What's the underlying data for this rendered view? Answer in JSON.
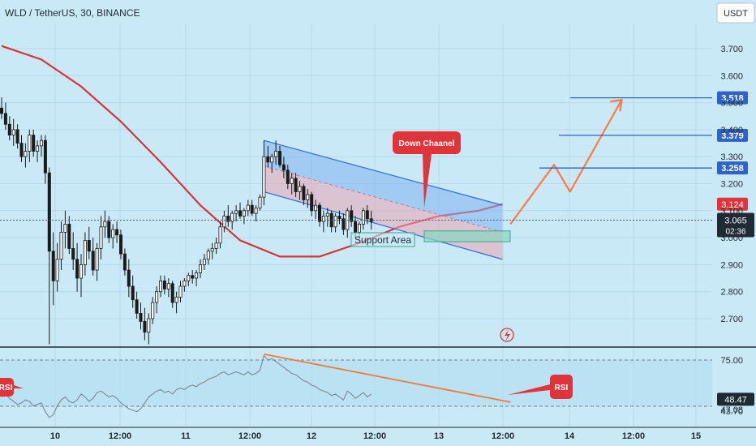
{
  "header": {
    "title": "WLD / TetherUS, 30, BINANCE",
    "currency_button": "USDT"
  },
  "colors": {
    "background": "#c9e9f7",
    "up": "#1b1b1b",
    "down": "#1b1b1b",
    "ma": "#d8333d",
    "channel": "#2f6fd8",
    "projection": "#ff7a3d",
    "level": "#2f63c9",
    "price_tag": "#2f63c9",
    "red_tag": "#e0333a",
    "rsi_line": "#7b8894",
    "rsi_trend": "#f07a3e"
  },
  "chart_data": {
    "type": "candlestick",
    "title": "WLD / TetherUS, 30, BINANCE",
    "x_ticks": [
      "10",
      "12:00",
      "11",
      "12:00",
      "12",
      "12:00",
      "13",
      "12:00",
      "14",
      "12:00",
      "15"
    ],
    "y_ticks": [
      3.7,
      3.6,
      3.5,
      3.4,
      3.3,
      3.2,
      3.1,
      3.0,
      2.9,
      2.8,
      2.7
    ],
    "y_tick_labels": [
      "3.700",
      "3.600",
      "3.500",
      "3.400",
      "3.300",
      "3.200",
      "3.100",
      "3.000",
      "2.900",
      "2.800",
      "2.700"
    ],
    "ylim": [
      2.61,
      3.83
    ],
    "candles": [
      [
        3.48,
        3.52,
        3.44,
        3.46
      ],
      [
        3.46,
        3.5,
        3.4,
        3.42
      ],
      [
        3.42,
        3.45,
        3.36,
        3.38
      ],
      [
        3.38,
        3.44,
        3.34,
        3.4
      ],
      [
        3.4,
        3.42,
        3.33,
        3.35
      ],
      [
        3.35,
        3.38,
        3.28,
        3.3
      ],
      [
        3.3,
        3.35,
        3.26,
        3.32
      ],
      [
        3.32,
        3.4,
        3.28,
        3.38
      ],
      [
        3.38,
        3.4,
        3.3,
        3.32
      ],
      [
        3.32,
        3.36,
        3.28,
        3.34
      ],
      [
        3.34,
        3.38,
        3.3,
        3.36
      ],
      [
        3.36,
        3.38,
        3.2,
        3.24
      ],
      [
        3.24,
        3.26,
        2.58,
        2.95
      ],
      [
        2.95,
        3.02,
        2.75,
        2.84
      ],
      [
        2.84,
        2.98,
        2.8,
        2.92
      ],
      [
        2.92,
        3.06,
        2.88,
        3.02
      ],
      [
        3.02,
        3.1,
        2.96,
        3.05
      ],
      [
        3.05,
        3.08,
        2.94,
        2.96
      ],
      [
        2.96,
        3.02,
        2.88,
        2.92
      ],
      [
        2.92,
        2.98,
        2.8,
        2.85
      ],
      [
        2.85,
        2.94,
        2.78,
        2.9
      ],
      [
        2.9,
        3.02,
        2.86,
        2.99
      ],
      [
        2.99,
        3.04,
        2.92,
        2.95
      ],
      [
        2.95,
        3.0,
        2.86,
        2.88
      ],
      [
        2.88,
        2.98,
        2.84,
        2.96
      ],
      [
        2.96,
        3.08,
        2.92,
        3.04
      ],
      [
        3.04,
        3.1,
        3.0,
        3.06
      ],
      [
        3.06,
        3.08,
        2.98,
        3.0
      ],
      [
        3.0,
        3.05,
        2.96,
        3.03
      ],
      [
        3.03,
        3.06,
        2.98,
        3.01
      ],
      [
        3.01,
        3.03,
        2.92,
        2.94
      ],
      [
        2.94,
        2.96,
        2.86,
        2.88
      ],
      [
        2.88,
        2.92,
        2.78,
        2.82
      ],
      [
        2.82,
        2.86,
        2.74,
        2.77
      ],
      [
        2.77,
        2.8,
        2.7,
        2.72
      ],
      [
        2.72,
        2.76,
        2.66,
        2.69
      ],
      [
        2.69,
        2.74,
        2.62,
        2.65
      ],
      [
        2.65,
        2.72,
        2.6,
        2.7
      ],
      [
        2.7,
        2.78,
        2.68,
        2.76
      ],
      [
        2.76,
        2.82,
        2.72,
        2.8
      ],
      [
        2.8,
        2.86,
        2.78,
        2.84
      ],
      [
        2.84,
        2.86,
        2.79,
        2.81
      ],
      [
        2.81,
        2.85,
        2.78,
        2.83
      ],
      [
        2.83,
        2.84,
        2.74,
        2.76
      ],
      [
        2.76,
        2.8,
        2.72,
        2.78
      ],
      [
        2.78,
        2.84,
        2.76,
        2.82
      ],
      [
        2.82,
        2.85,
        2.8,
        2.84
      ],
      [
        2.84,
        2.87,
        2.82,
        2.86
      ],
      [
        2.86,
        2.88,
        2.83,
        2.85
      ],
      [
        2.85,
        2.88,
        2.82,
        2.87
      ],
      [
        2.87,
        2.92,
        2.85,
        2.9
      ],
      [
        2.9,
        2.94,
        2.88,
        2.92
      ],
      [
        2.92,
        2.96,
        2.9,
        2.95
      ],
      [
        2.95,
        2.98,
        2.92,
        2.96
      ],
      [
        2.96,
        3.0,
        2.94,
        2.98
      ],
      [
        2.98,
        3.06,
        2.96,
        3.04
      ],
      [
        3.04,
        3.1,
        3.02,
        3.08
      ],
      [
        3.08,
        3.12,
        3.04,
        3.06
      ],
      [
        3.06,
        3.1,
        3.03,
        3.09
      ],
      [
        3.09,
        3.12,
        3.06,
        3.1
      ],
      [
        3.1,
        3.13,
        3.07,
        3.08
      ],
      [
        3.08,
        3.11,
        3.05,
        3.1
      ],
      [
        3.1,
        3.14,
        3.08,
        3.12
      ],
      [
        3.12,
        3.14,
        3.08,
        3.09
      ],
      [
        3.09,
        3.12,
        3.06,
        3.11
      ],
      [
        3.11,
        3.16,
        3.1,
        3.15
      ],
      [
        3.15,
        3.36,
        3.12,
        3.3
      ],
      [
        3.3,
        3.34,
        3.26,
        3.28
      ],
      [
        3.28,
        3.31,
        3.24,
        3.3
      ],
      [
        3.3,
        3.36,
        3.27,
        3.32
      ],
      [
        3.32,
        3.34,
        3.26,
        3.27
      ],
      [
        3.27,
        3.3,
        3.22,
        3.25
      ],
      [
        3.25,
        3.27,
        3.18,
        3.2
      ],
      [
        3.2,
        3.24,
        3.16,
        3.22
      ],
      [
        3.22,
        3.24,
        3.15,
        3.17
      ],
      [
        3.17,
        3.21,
        3.14,
        3.19
      ],
      [
        3.19,
        3.2,
        3.12,
        3.14
      ],
      [
        3.14,
        3.18,
        3.11,
        3.16
      ],
      [
        3.16,
        3.17,
        3.08,
        3.1
      ],
      [
        3.1,
        3.14,
        3.07,
        3.12
      ],
      [
        3.12,
        3.13,
        3.04,
        3.06
      ],
      [
        3.06,
        3.1,
        3.02,
        3.08
      ],
      [
        3.08,
        3.11,
        3.04,
        3.09
      ],
      [
        3.09,
        3.1,
        3.02,
        3.04
      ],
      [
        3.04,
        3.09,
        3.02,
        3.08
      ],
      [
        3.08,
        3.1,
        3.05,
        3.07
      ],
      [
        3.07,
        3.09,
        3.01,
        3.03
      ],
      [
        3.03,
        3.11,
        3.0,
        3.1
      ],
      [
        3.1,
        3.12,
        3.04,
        3.06
      ],
      [
        3.06,
        3.08,
        3.0,
        3.02
      ],
      [
        3.02,
        3.06,
        2.99,
        3.05
      ],
      [
        3.05,
        3.11,
        3.03,
        3.1
      ],
      [
        3.1,
        3.12,
        3.05,
        3.07
      ],
      [
        3.07,
        3.1,
        3.03,
        3.06
      ]
    ],
    "moving_average": [
      [
        0,
        3.71
      ],
      [
        10,
        3.66
      ],
      [
        20,
        3.56
      ],
      [
        30,
        3.43
      ],
      [
        40,
        3.28
      ],
      [
        50,
        3.12
      ],
      [
        60,
        2.99
      ],
      [
        70,
        2.93
      ],
      [
        80,
        2.93
      ],
      [
        90,
        2.98
      ],
      [
        100,
        3.04
      ],
      [
        110,
        3.08
      ],
      [
        120,
        3.1
      ],
      [
        126,
        3.124
      ]
    ],
    "channel": {
      "upper": [
        [
          66,
          3.36
        ],
        [
          126,
          3.12
        ]
      ],
      "lower": [
        [
          66,
          3.17
        ],
        [
          126,
          2.92
        ]
      ]
    },
    "support_area": {
      "label": "Support Area",
      "range": [
        2.985,
        3.025
      ]
    },
    "down_channel_label": "Down Chaanel",
    "projection": [
      [
        128,
        3.05
      ],
      [
        139,
        3.27
      ],
      [
        143,
        3.17
      ],
      [
        156,
        3.51
      ]
    ],
    "levels": [
      {
        "value": 3.518,
        "label": "3.518"
      },
      {
        "value": 3.379,
        "label": "3.379"
      },
      {
        "value": 3.258,
        "label": "3.258"
      }
    ],
    "current_price": {
      "value": 3.065,
      "label": "3.065",
      "countdown": "02:36"
    },
    "ma_tag": {
      "value": 3.124,
      "label": "3.124"
    },
    "rsi": {
      "label": "RSI",
      "y_ticks": [
        75.0,
        47.08,
        43.7
      ],
      "y_tick_labels": [
        "75.00",
        "47.08",
        "43.70"
      ],
      "value": 48.47,
      "value_label": "48.47",
      "ylim": [
        38,
        82
      ],
      "values": [
        50,
        52,
        49,
        47,
        45,
        46,
        48,
        47,
        44,
        45,
        46,
        40,
        36,
        38,
        44,
        48,
        50,
        47,
        46,
        48,
        52,
        50,
        47,
        49,
        53,
        54,
        52,
        50,
        51,
        49,
        46,
        44,
        42,
        41,
        40,
        42,
        46,
        50,
        52,
        54,
        55,
        53,
        54,
        52,
        55,
        56,
        55,
        57,
        58,
        57,
        59,
        60,
        62,
        63,
        64,
        66,
        67,
        65,
        66,
        67,
        66,
        65,
        67,
        65,
        66,
        68,
        78,
        75,
        76,
        74,
        72,
        70,
        68,
        66,
        65,
        63,
        61,
        60,
        58,
        57,
        55,
        54,
        53,
        51,
        52,
        50,
        48,
        54,
        52,
        49,
        51,
        53,
        50,
        52
      ],
      "trend": [
        [
          66,
          79
        ],
        [
          128,
          46.5
        ]
      ]
    }
  }
}
